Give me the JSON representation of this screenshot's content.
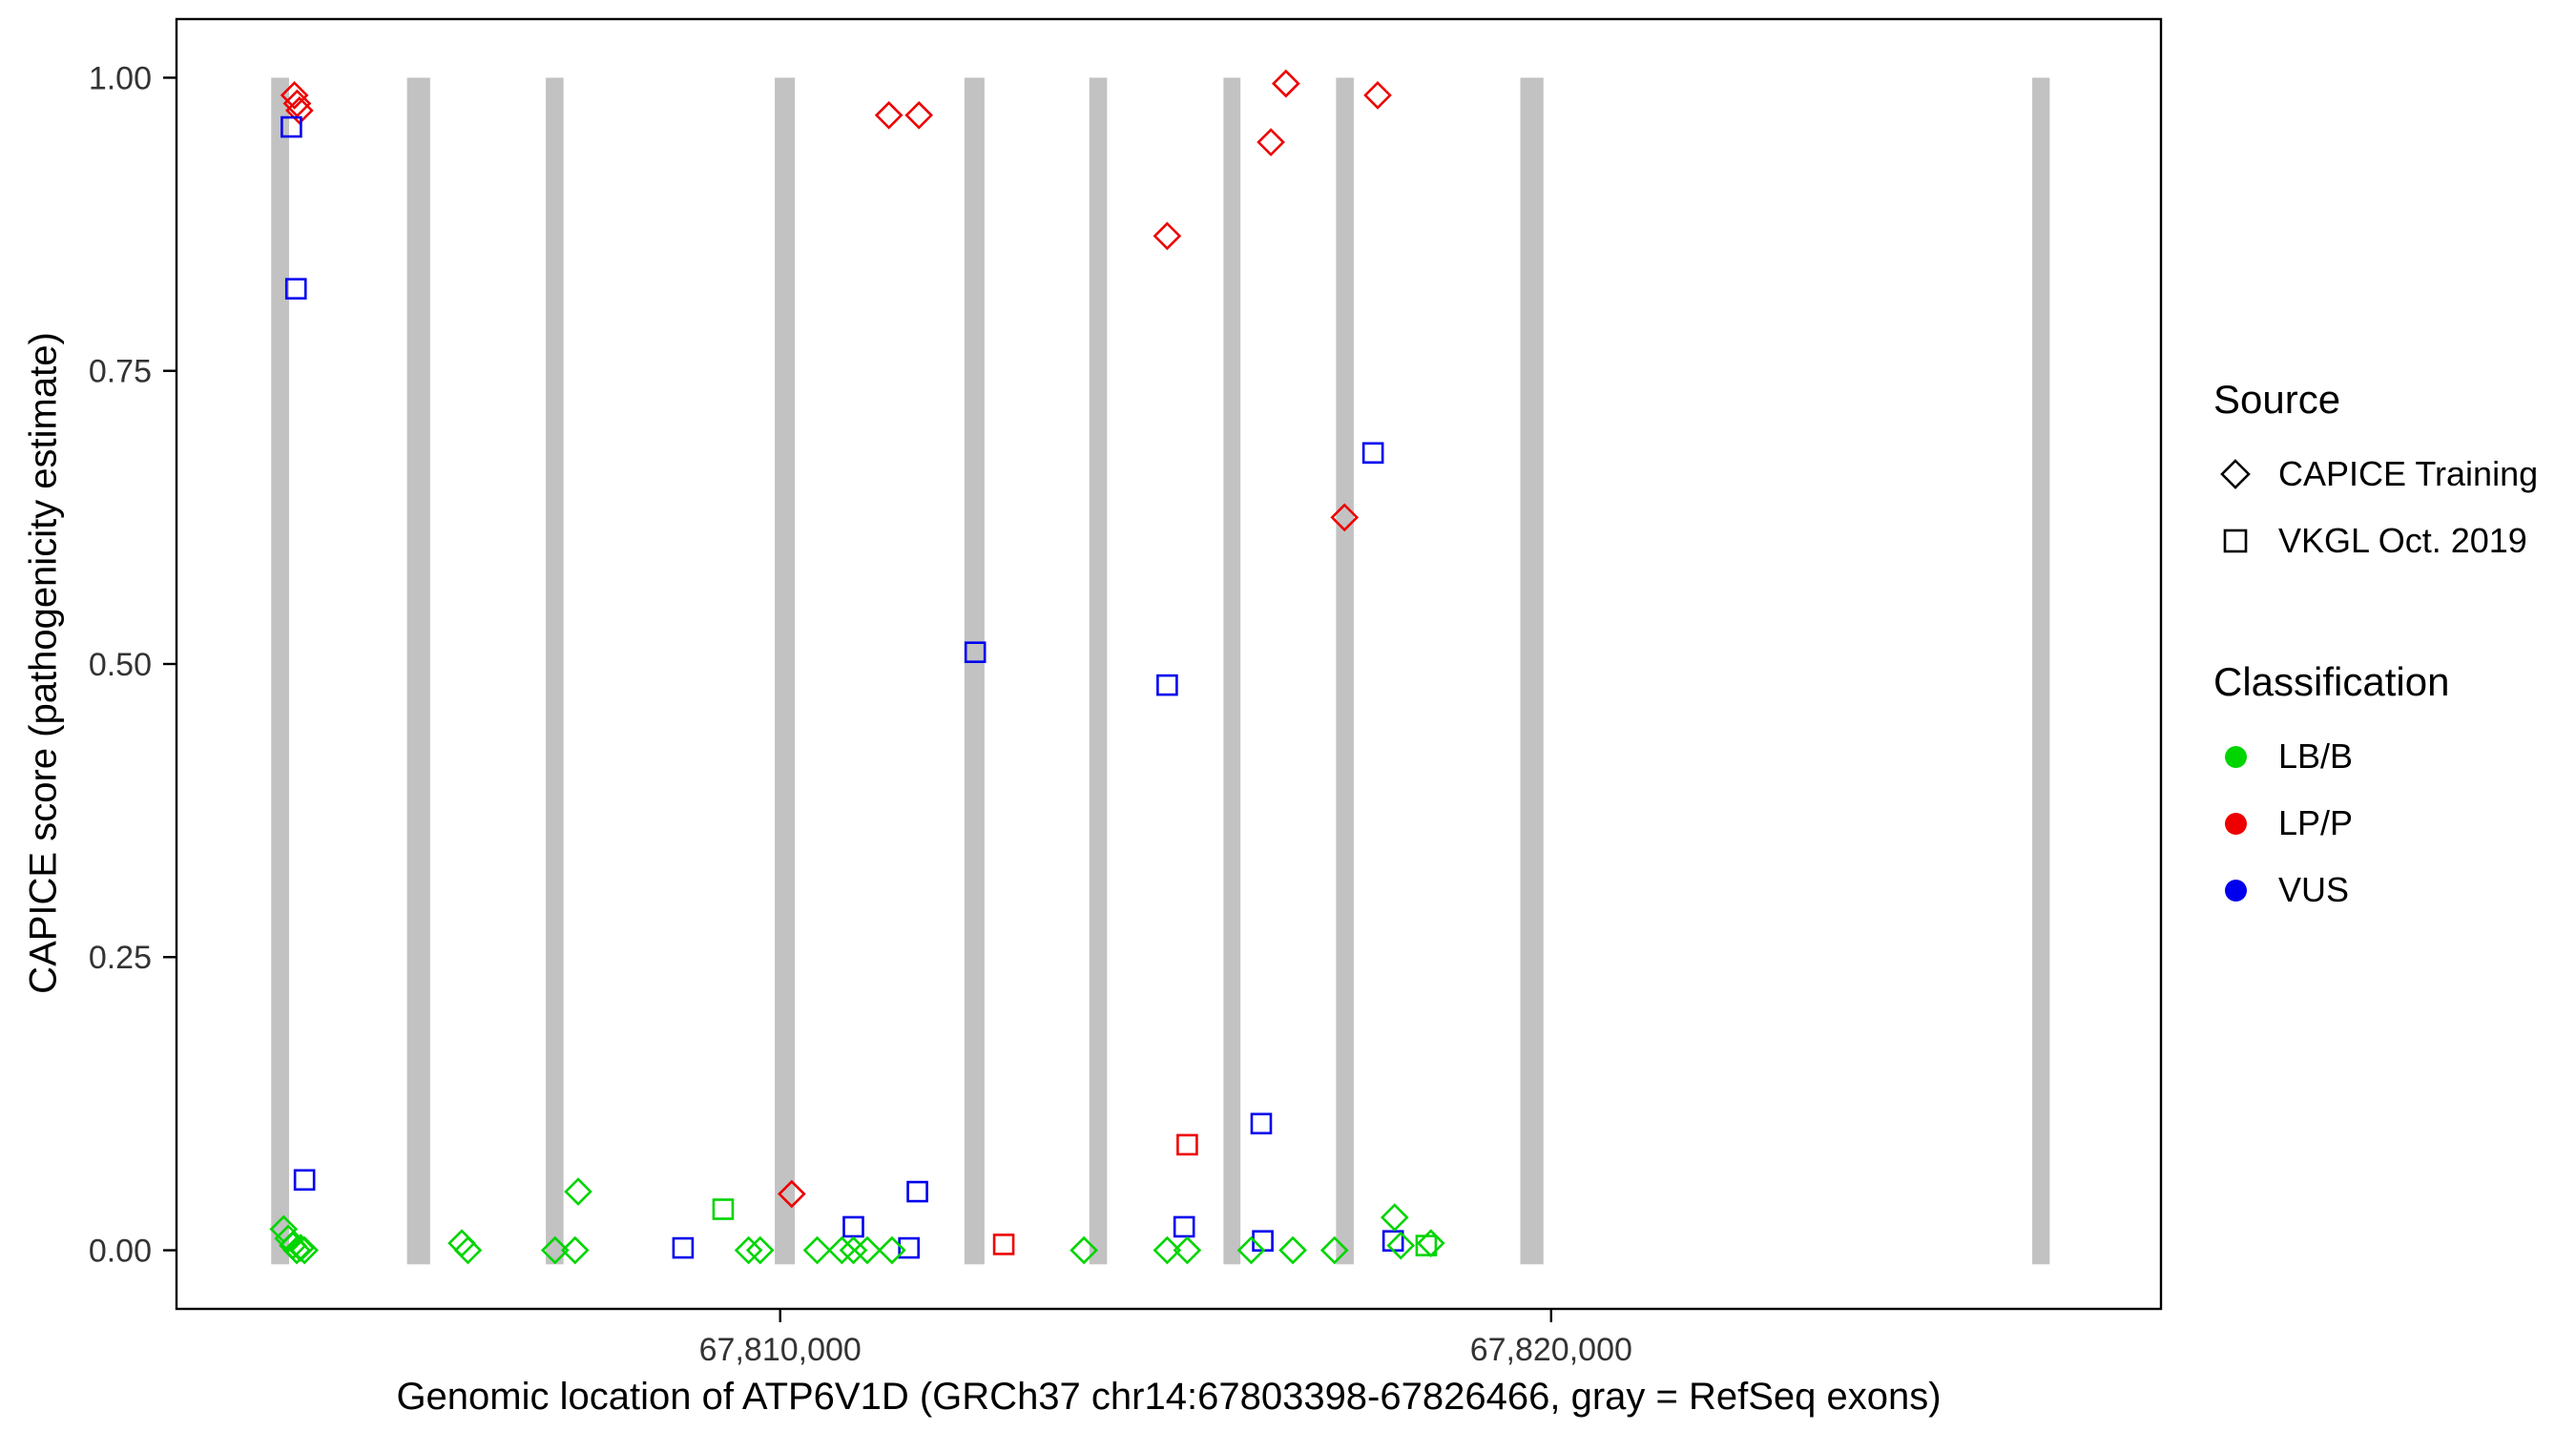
{
  "figure": {
    "x_axis_title": "Genomic location of ATP6V1D (GRCh37 chr14:67803398-67826466, gray = RefSeq exons)",
    "y_axis_title": "CAPICE score (pathogenicity estimate)"
  },
  "legend": {
    "source": {
      "title": "Source",
      "items": [
        {
          "label": "CAPICE Training",
          "shape": "diamond"
        },
        {
          "label": "VKGL Oct. 2019",
          "shape": "square"
        }
      ]
    },
    "classification": {
      "title": "Classification",
      "items": [
        {
          "label": "LB/B",
          "color": "#00d500"
        },
        {
          "label": "LP/P",
          "color": "#ee0000"
        },
        {
          "label": "VUS",
          "color": "#0000ee"
        }
      ]
    }
  },
  "chart_data": {
    "type": "scatter",
    "title": "",
    "xlabel": "Genomic location of ATP6V1D (GRCh37 chr14:67803398-67826466, gray = RefSeq exons)",
    "ylabel": "CAPICE score (pathogenicity estimate)",
    "x_domain": [
      67802170,
      67827910
    ],
    "y_domain": [
      -0.05,
      1.05
    ],
    "x_ticks": [
      {
        "value": 67810000,
        "label": "67,810,000"
      },
      {
        "value": 67820000,
        "label": "67,820,000"
      }
    ],
    "y_ticks": [
      {
        "value": 0.0,
        "label": "0.00"
      },
      {
        "value": 0.25,
        "label": "0.25"
      },
      {
        "value": 0.5,
        "label": "0.50"
      },
      {
        "value": 0.75,
        "label": "0.75"
      },
      {
        "value": 1.0,
        "label": "1.00"
      }
    ],
    "grid": false,
    "legend_position": "right",
    "exon_color": "#c2c2c2",
    "exons": [
      [
        67803398,
        67803630
      ],
      [
        67805160,
        67805460
      ],
      [
        67806960,
        67807190
      ],
      [
        67809930,
        67810190
      ],
      [
        67812390,
        67812650
      ],
      [
        67814010,
        67814240
      ],
      [
        67815750,
        67815970
      ],
      [
        67817210,
        67817440
      ],
      [
        67819600,
        67819900
      ],
      [
        67826240,
        67826466
      ]
    ],
    "shape_by_source": {
      "CAPICE Training": "diamond",
      "VKGL Oct. 2019": "square"
    },
    "color_by_class": {
      "LB/B": "#00d500",
      "LP/P": "#ee0000",
      "VUS": "#0000ee"
    },
    "points": [
      {
        "x": 67803700,
        "y": 0.985,
        "source": "CAPICE Training",
        "classification": "LP/P"
      },
      {
        "x": 67803735,
        "y": 0.978,
        "source": "CAPICE Training",
        "classification": "LP/P"
      },
      {
        "x": 67803765,
        "y": 0.972,
        "source": "CAPICE Training",
        "classification": "LP/P"
      },
      {
        "x": 67811410,
        "y": 0.968,
        "source": "CAPICE Training",
        "classification": "LP/P"
      },
      {
        "x": 67811800,
        "y": 0.968,
        "source": "CAPICE Training",
        "classification": "LP/P"
      },
      {
        "x": 67815020,
        "y": 0.865,
        "source": "CAPICE Training",
        "classification": "LP/P"
      },
      {
        "x": 67816560,
        "y": 0.995,
        "source": "CAPICE Training",
        "classification": "LP/P"
      },
      {
        "x": 67816365,
        "y": 0.945,
        "source": "CAPICE Training",
        "classification": "LP/P"
      },
      {
        "x": 67817750,
        "y": 0.985,
        "source": "CAPICE Training",
        "classification": "LP/P"
      },
      {
        "x": 67817320,
        "y": 0.625,
        "source": "CAPICE Training",
        "classification": "LP/P"
      },
      {
        "x": 67810150,
        "y": 0.048,
        "source": "CAPICE Training",
        "classification": "LP/P"
      },
      {
        "x": 67815280,
        "y": 0.09,
        "source": "VKGL Oct. 2019",
        "classification": "LP/P"
      },
      {
        "x": 67812900,
        "y": 0.005,
        "source": "VKGL Oct. 2019",
        "classification": "LP/P"
      },
      {
        "x": 67803660,
        "y": 0.958,
        "source": "VKGL Oct. 2019",
        "classification": "VUS"
      },
      {
        "x": 67803720,
        "y": 0.82,
        "source": "VKGL Oct. 2019",
        "classification": "VUS"
      },
      {
        "x": 67812530,
        "y": 0.51,
        "source": "VKGL Oct. 2019",
        "classification": "VUS"
      },
      {
        "x": 67815020,
        "y": 0.482,
        "source": "VKGL Oct. 2019",
        "classification": "VUS"
      },
      {
        "x": 67817690,
        "y": 0.68,
        "source": "VKGL Oct. 2019",
        "classification": "VUS"
      },
      {
        "x": 67816240,
        "y": 0.108,
        "source": "VKGL Oct. 2019",
        "classification": "VUS"
      },
      {
        "x": 67803830,
        "y": 0.06,
        "source": "VKGL Oct. 2019",
        "classification": "VUS"
      },
      {
        "x": 67811780,
        "y": 0.05,
        "source": "VKGL Oct. 2019",
        "classification": "VUS"
      },
      {
        "x": 67810950,
        "y": 0.02,
        "source": "VKGL Oct. 2019",
        "classification": "VUS"
      },
      {
        "x": 67815240,
        "y": 0.02,
        "source": "VKGL Oct. 2019",
        "classification": "VUS"
      },
      {
        "x": 67808740,
        "y": 0.002,
        "source": "VKGL Oct. 2019",
        "classification": "VUS"
      },
      {
        "x": 67811670,
        "y": 0.002,
        "source": "VKGL Oct. 2019",
        "classification": "VUS"
      },
      {
        "x": 67816260,
        "y": 0.008,
        "source": "VKGL Oct. 2019",
        "classification": "VUS"
      },
      {
        "x": 67817950,
        "y": 0.008,
        "source": "VKGL Oct. 2019",
        "classification": "VUS"
      },
      {
        "x": 67803560,
        "y": 0.018,
        "source": "CAPICE Training",
        "classification": "LB/B"
      },
      {
        "x": 67803620,
        "y": 0.01,
        "source": "CAPICE Training",
        "classification": "LB/B"
      },
      {
        "x": 67803680,
        "y": 0.004,
        "source": "CAPICE Training",
        "classification": "LB/B"
      },
      {
        "x": 67803730,
        "y": 0.0,
        "source": "CAPICE Training",
        "classification": "LB/B"
      },
      {
        "x": 67803780,
        "y": 0.002,
        "source": "CAPICE Training",
        "classification": "LB/B"
      },
      {
        "x": 67803830,
        "y": 0.0,
        "source": "CAPICE Training",
        "classification": "LB/B"
      },
      {
        "x": 67805870,
        "y": 0.006,
        "source": "CAPICE Training",
        "classification": "LB/B"
      },
      {
        "x": 67805950,
        "y": 0.0,
        "source": "CAPICE Training",
        "classification": "LB/B"
      },
      {
        "x": 67807080,
        "y": 0.0,
        "source": "CAPICE Training",
        "classification": "LB/B"
      },
      {
        "x": 67807340,
        "y": 0.0,
        "source": "CAPICE Training",
        "classification": "LB/B"
      },
      {
        "x": 67807380,
        "y": 0.05,
        "source": "CAPICE Training",
        "classification": "LB/B"
      },
      {
        "x": 67809590,
        "y": 0.0,
        "source": "CAPICE Training",
        "classification": "LB/B"
      },
      {
        "x": 67809740,
        "y": 0.0,
        "source": "CAPICE Training",
        "classification": "LB/B"
      },
      {
        "x": 67810480,
        "y": 0.0,
        "source": "CAPICE Training",
        "classification": "LB/B"
      },
      {
        "x": 67810800,
        "y": 0.0,
        "source": "CAPICE Training",
        "classification": "LB/B"
      },
      {
        "x": 67810950,
        "y": 0.0,
        "source": "CAPICE Training",
        "classification": "LB/B"
      },
      {
        "x": 67811130,
        "y": 0.0,
        "source": "CAPICE Training",
        "classification": "LB/B"
      },
      {
        "x": 67811450,
        "y": 0.0,
        "source": "CAPICE Training",
        "classification": "LB/B"
      },
      {
        "x": 67813940,
        "y": 0.0,
        "source": "CAPICE Training",
        "classification": "LB/B"
      },
      {
        "x": 67815020,
        "y": 0.0,
        "source": "CAPICE Training",
        "classification": "LB/B"
      },
      {
        "x": 67815280,
        "y": 0.0,
        "source": "CAPICE Training",
        "classification": "LB/B"
      },
      {
        "x": 67816110,
        "y": 0.0,
        "source": "CAPICE Training",
        "classification": "LB/B"
      },
      {
        "x": 67816650,
        "y": 0.0,
        "source": "CAPICE Training",
        "classification": "LB/B"
      },
      {
        "x": 67817190,
        "y": 0.0,
        "source": "CAPICE Training",
        "classification": "LB/B"
      },
      {
        "x": 67817970,
        "y": 0.028,
        "source": "CAPICE Training",
        "classification": "LB/B"
      },
      {
        "x": 67818050,
        "y": 0.004,
        "source": "CAPICE Training",
        "classification": "LB/B"
      },
      {
        "x": 67818440,
        "y": 0.006,
        "source": "CAPICE Training",
        "classification": "LB/B"
      },
      {
        "x": 67809260,
        "y": 0.035,
        "source": "VKGL Oct. 2019",
        "classification": "LB/B"
      },
      {
        "x": 67818380,
        "y": 0.004,
        "source": "VKGL Oct. 2019",
        "classification": "LB/B"
      }
    ]
  }
}
